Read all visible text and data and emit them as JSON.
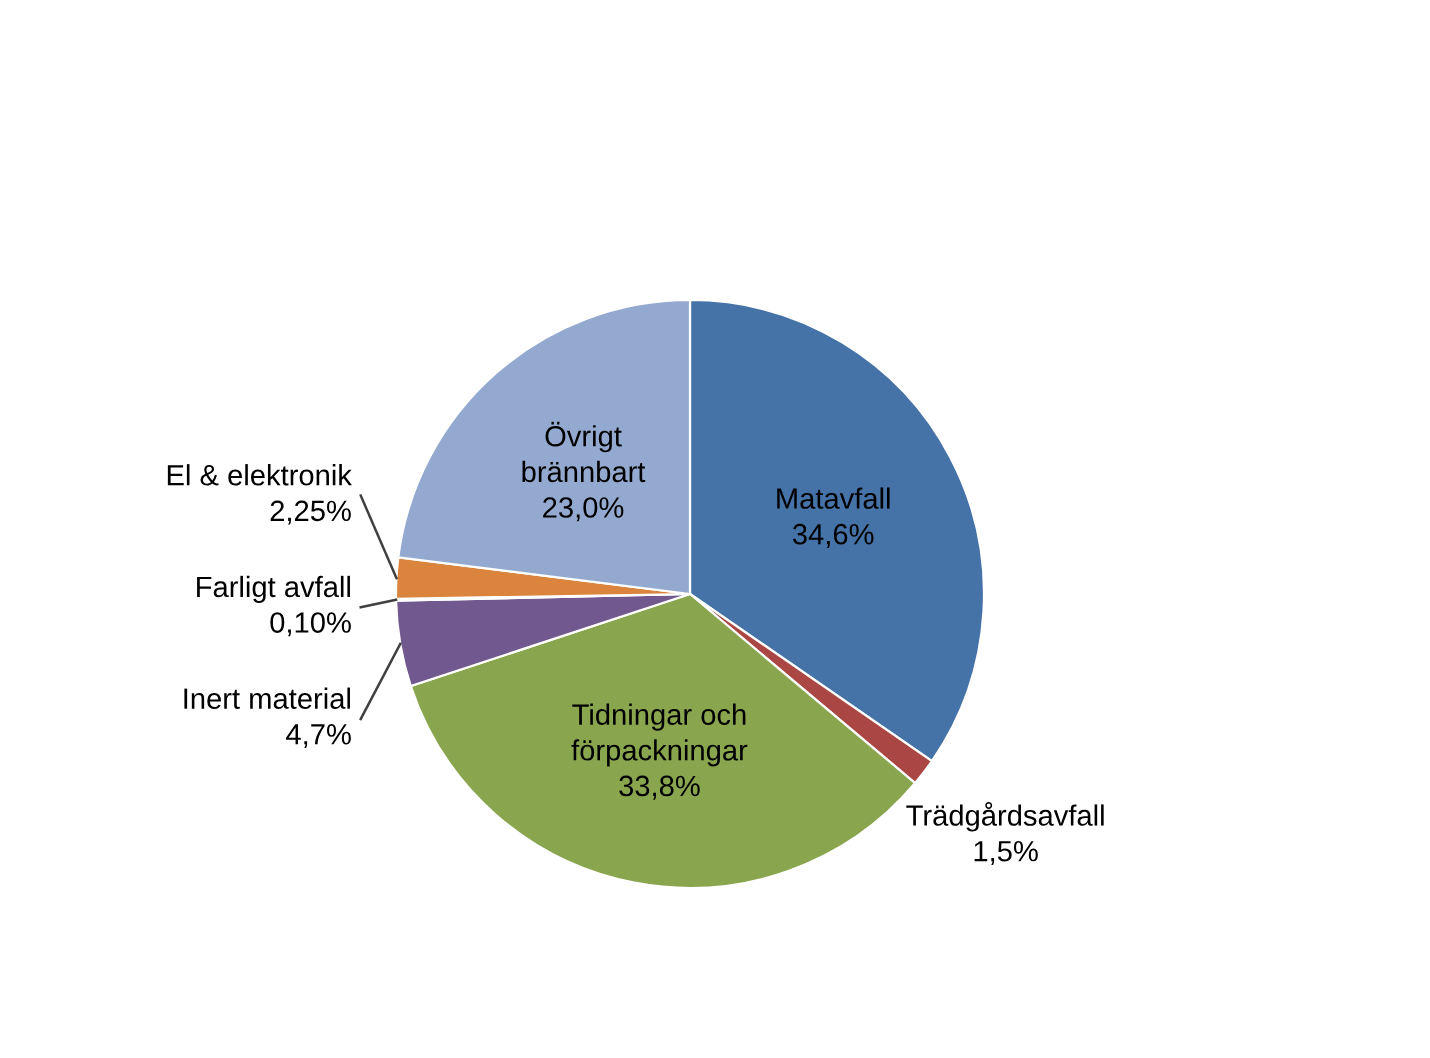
{
  "chart_data": {
    "type": "pie",
    "categories": [
      "Matavfall",
      "Trädgårdsavfall",
      "Tidningar och\nförpackningar",
      "Inert material",
      "Farligt avfall",
      "El & elektronik",
      "Övrigt\nbrännbart"
    ],
    "values": [
      34.6,
      1.5,
      33.8,
      4.7,
      0.1,
      2.25,
      23.0
    ],
    "value_labels": [
      "34,6%",
      "1,5%",
      "33,8%",
      "4,7%",
      "0,10%",
      "2,25%",
      "23,0%"
    ],
    "colors": [
      "#4572a7",
      "#aa4643",
      "#89a54e",
      "#71588f",
      "#4198af",
      "#db843d",
      "#93a9cf"
    ]
  }
}
